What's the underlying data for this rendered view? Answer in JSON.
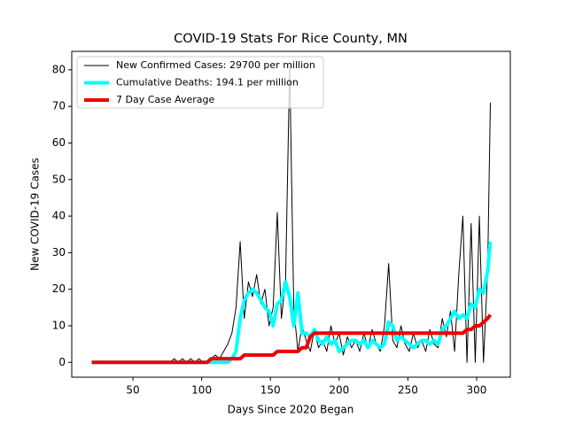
{
  "chart_data": {
    "type": "line",
    "title": "COVID-19 Stats For Rice County, MN",
    "x_label": "Days Since 2020 Began",
    "y_label": "New COVID-19 Cases",
    "xlim": [
      5.5,
      324.5
    ],
    "ylim": [
      -4.05,
      85.05
    ],
    "xticks": [
      50,
      100,
      150,
      200,
      250,
      300
    ],
    "yticks": [
      0,
      10,
      20,
      30,
      40,
      50,
      60,
      70,
      80
    ],
    "legend": "upper left",
    "x": [
      20,
      23,
      26,
      29,
      32,
      35,
      38,
      41,
      44,
      47,
      50,
      53,
      56,
      59,
      62,
      65,
      68,
      71,
      74,
      77,
      80,
      83,
      86,
      89,
      92,
      95,
      98,
      101,
      104,
      107,
      110,
      113,
      116,
      119,
      122,
      125,
      128,
      131,
      134,
      137,
      140,
      143,
      146,
      149,
      152,
      155,
      158,
      161,
      164,
      167,
      170,
      173,
      176,
      179,
      182,
      185,
      188,
      191,
      194,
      197,
      200,
      203,
      206,
      209,
      212,
      215,
      218,
      221,
      224,
      227,
      230,
      233,
      236,
      239,
      242,
      245,
      248,
      251,
      254,
      257,
      260,
      263,
      266,
      269,
      272,
      275,
      278,
      281,
      284,
      287,
      290,
      293,
      296,
      299,
      302,
      305,
      308,
      310
    ],
    "series": [
      {
        "name": "New Confirmed Cases: 29700 per million",
        "color": "#000000",
        "width": 1,
        "values": [
          0,
          0,
          0,
          0,
          0,
          0,
          0,
          0,
          0,
          0,
          0,
          0,
          0,
          0,
          0,
          0,
          0,
          0,
          0,
          0,
          1,
          0,
          1,
          0,
          1,
          0,
          1,
          0,
          0,
          1,
          2,
          1,
          3,
          5,
          8,
          15,
          33,
          12,
          22,
          18,
          24,
          16,
          20,
          10,
          15,
          41,
          12,
          22,
          81,
          15,
          3,
          10,
          6,
          3,
          9,
          4,
          6,
          3,
          10,
          5,
          8,
          2,
          7,
          4,
          6,
          3,
          8,
          4,
          9,
          5,
          3,
          10,
          27,
          6,
          4,
          10,
          5,
          3,
          8,
          4,
          6,
          3,
          9,
          5,
          4,
          12,
          7,
          14,
          3,
          24,
          40,
          0,
          38,
          0,
          40,
          0,
          25,
          71
        ]
      },
      {
        "name": "Cumulative Deaths: 194.1 per million",
        "color": "#00ffff",
        "width": 4,
        "values": [
          0,
          0,
          0,
          0,
          0,
          0,
          0,
          0,
          0,
          0,
          0,
          0,
          0,
          0,
          0,
          0,
          0,
          0,
          0,
          0,
          0,
          0,
          0,
          0,
          0,
          0,
          0,
          0,
          0,
          0,
          0,
          0,
          0,
          0,
          1,
          3,
          12,
          17,
          19,
          20,
          19,
          17,
          15,
          14,
          10,
          16,
          17,
          22,
          18,
          10,
          19,
          8,
          8,
          7,
          9,
          6,
          5,
          7,
          5,
          6,
          3,
          4,
          5,
          6,
          6,
          5,
          6,
          4,
          6,
          5,
          4,
          5,
          11,
          10,
          6,
          7,
          6,
          5,
          4,
          5,
          6,
          6,
          5,
          6,
          5,
          9,
          10,
          12,
          14,
          12,
          13,
          12,
          16,
          15,
          20,
          19,
          25,
          33
        ]
      },
      {
        "name": "7 Day Case Average",
        "color": "#ee0000",
        "width": 4,
        "values": [
          0,
          0,
          0,
          0,
          0,
          0,
          0,
          0,
          0,
          0,
          0,
          0,
          0,
          0,
          0,
          0,
          0,
          0,
          0,
          0,
          0,
          0,
          0,
          0,
          0,
          0,
          0,
          0,
          0,
          1,
          1,
          1,
          1,
          1,
          1,
          1,
          1,
          2,
          2,
          2,
          2,
          2,
          2,
          2,
          2,
          3,
          3,
          3,
          3,
          3,
          3,
          4,
          4,
          7,
          8,
          8,
          8,
          8,
          8,
          8,
          8,
          8,
          8,
          8,
          8,
          8,
          8,
          8,
          8,
          8,
          8,
          8,
          8,
          8,
          8,
          8,
          8,
          8,
          8,
          8,
          8,
          8,
          8,
          8,
          8,
          8,
          8,
          8,
          8,
          8,
          8,
          9,
          9,
          10,
          10,
          11,
          12,
          13
        ]
      }
    ]
  }
}
